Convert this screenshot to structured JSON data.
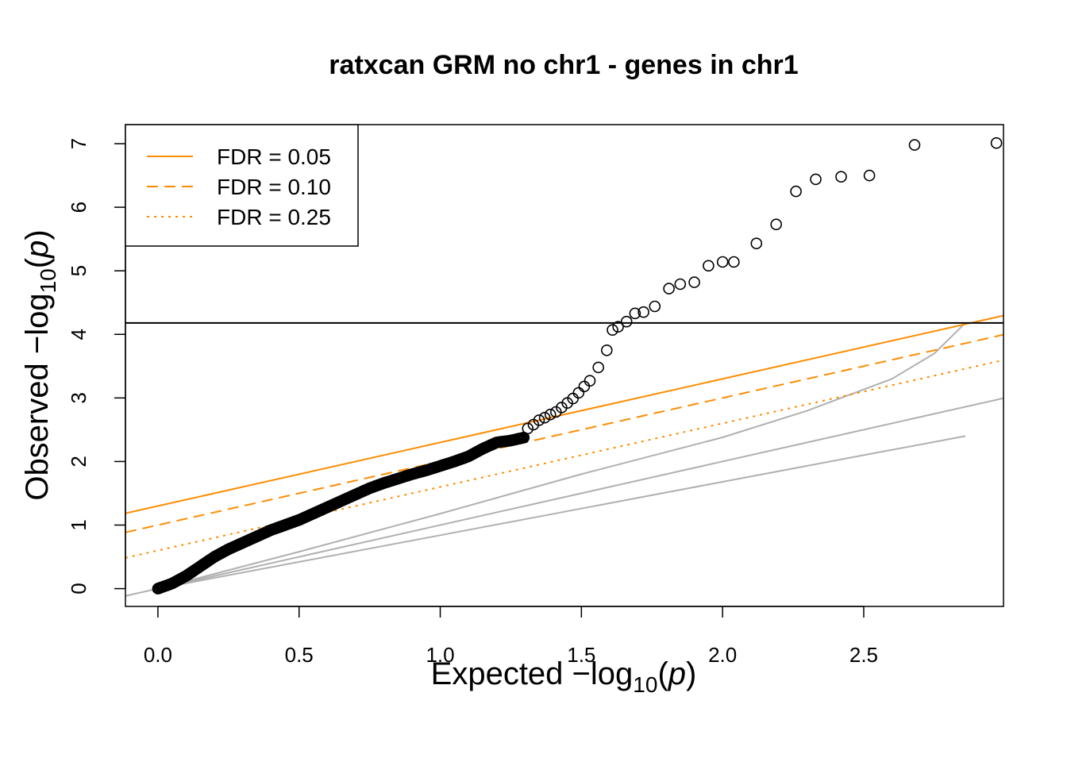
{
  "chart_data": {
    "type": "scatter",
    "title": "ratxcan GRM no chr1 - genes in chr1",
    "xlabel": {
      "prefix": "Expected  −log",
      "sub": "10",
      "open": "(",
      "var": "p",
      "close": ")"
    },
    "ylabel": {
      "prefix": "Observed  −log",
      "sub": "10",
      "open": "(",
      "var": "p",
      "close": ")"
    },
    "xlim": [
      -0.115,
      2.995
    ],
    "ylim": [
      -0.28,
      7.3
    ],
    "x_ticks": [
      0.0,
      0.5,
      1.0,
      1.5,
      2.0,
      2.5
    ],
    "x_tick_labels": [
      "0.0",
      "0.5",
      "1.0",
      "1.5",
      "2.0",
      "2.5"
    ],
    "y_ticks": [
      0,
      1,
      2,
      3,
      4,
      5,
      6,
      7
    ],
    "y_tick_labels": [
      "0",
      "1",
      "2",
      "3",
      "4",
      "5",
      "6",
      "7"
    ],
    "hline": {
      "y": 4.18,
      "color": "#000000"
    },
    "legend": {
      "position": "top-left",
      "entries": [
        {
          "label": "FDR = 0.05",
          "style": "solid",
          "color": "#ff8c00"
        },
        {
          "label": "FDR = 0.10",
          "style": "dashed",
          "color": "#ff8c00"
        },
        {
          "label": "FDR = 0.25",
          "style": "dotted",
          "color": "#ff8c00"
        }
      ]
    },
    "fdr_lines": [
      {
        "name": "FDR = 0.05",
        "intercept": 1.3,
        "slope": 1.0,
        "style": "solid",
        "color": "#ff8c00"
      },
      {
        "name": "FDR = 0.10",
        "intercept": 1.0,
        "slope": 1.0,
        "style": "dashed",
        "color": "#ff8c00"
      },
      {
        "name": "FDR = 0.25",
        "intercept": 0.6,
        "slope": 1.0,
        "style": "dotted",
        "color": "#ff8c00"
      }
    ],
    "reference_lines": [
      {
        "points": [
          [
            -0.115,
            -0.115
          ],
          [
            2.995,
            2.995
          ]
        ],
        "color": "#b0b0b0"
      },
      {
        "points": [
          [
            0.0,
            0.0
          ],
          [
            0.5,
            0.42
          ],
          [
            1.0,
            0.84
          ],
          [
            1.5,
            1.26
          ],
          [
            2.0,
            1.68
          ],
          [
            2.5,
            2.1
          ],
          [
            2.86,
            2.4
          ]
        ],
        "color": "#b0b0b0"
      },
      {
        "points": [
          [
            0.0,
            0.0
          ],
          [
            0.5,
            0.58
          ],
          [
            1.0,
            1.18
          ],
          [
            1.5,
            1.8
          ],
          [
            2.0,
            2.38
          ],
          [
            2.3,
            2.8
          ],
          [
            2.6,
            3.3
          ],
          [
            2.75,
            3.7
          ],
          [
            2.86,
            4.18
          ]
        ],
        "color": "#b0b0b0"
      }
    ],
    "dense_band": {
      "x": [
        0.0,
        0.05,
        0.1,
        0.15,
        0.2,
        0.25,
        0.3,
        0.35,
        0.4,
        0.45,
        0.5,
        0.55,
        0.6,
        0.65,
        0.7,
        0.75,
        0.8,
        0.85,
        0.9,
        0.95,
        1.0,
        1.05,
        1.1,
        1.15,
        1.2,
        1.25,
        1.3
      ],
      "y": [
        0.0,
        0.08,
        0.2,
        0.35,
        0.5,
        0.62,
        0.72,
        0.82,
        0.92,
        1.0,
        1.08,
        1.18,
        1.28,
        1.38,
        1.48,
        1.58,
        1.66,
        1.73,
        1.8,
        1.86,
        1.93,
        2.0,
        2.08,
        2.2,
        2.3,
        2.33,
        2.38
      ]
    },
    "points": [
      [
        1.31,
        2.52
      ],
      [
        1.33,
        2.58
      ],
      [
        1.35,
        2.65
      ],
      [
        1.37,
        2.69
      ],
      [
        1.39,
        2.74
      ],
      [
        1.41,
        2.78
      ],
      [
        1.43,
        2.85
      ],
      [
        1.45,
        2.92
      ],
      [
        1.47,
        2.99
      ],
      [
        1.49,
        3.08
      ],
      [
        1.51,
        3.18
      ],
      [
        1.53,
        3.27
      ],
      [
        1.56,
        3.48
      ],
      [
        1.59,
        3.75
      ],
      [
        1.61,
        4.07
      ],
      [
        1.63,
        4.12
      ],
      [
        1.66,
        4.2
      ],
      [
        1.69,
        4.33
      ],
      [
        1.72,
        4.35
      ],
      [
        1.76,
        4.44
      ],
      [
        1.81,
        4.72
      ],
      [
        1.85,
        4.79
      ],
      [
        1.9,
        4.82
      ],
      [
        1.95,
        5.08
      ],
      [
        2.0,
        5.14
      ],
      [
        2.04,
        5.14
      ],
      [
        2.12,
        5.43
      ],
      [
        2.19,
        5.73
      ],
      [
        2.26,
        6.25
      ],
      [
        2.33,
        6.44
      ],
      [
        2.42,
        6.48
      ],
      [
        2.52,
        6.5
      ],
      [
        2.68,
        6.98
      ],
      [
        2.97,
        7.01
      ]
    ]
  }
}
